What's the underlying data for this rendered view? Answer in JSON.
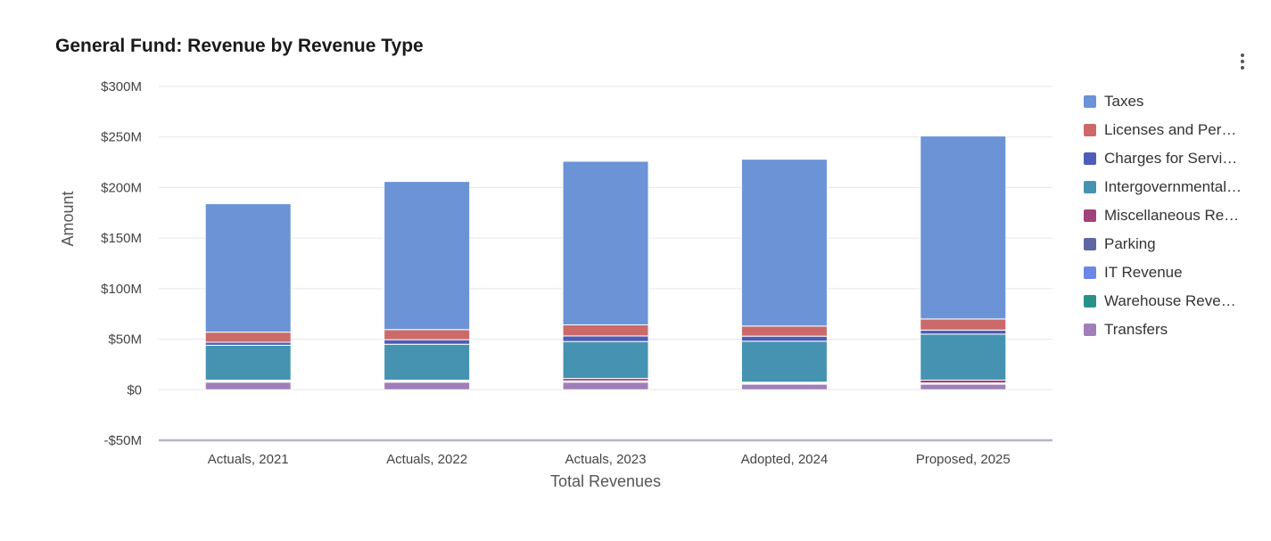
{
  "chart_data": {
    "type": "bar",
    "stacked": true,
    "title": "General Fund: Revenue by Revenue Type",
    "xlabel": "Total Revenues",
    "ylabel": "Amount",
    "ylim": [
      -50,
      300
    ],
    "y_ticks": [
      {
        "value": 300,
        "label": "$300M"
      },
      {
        "value": 250,
        "label": "$250M"
      },
      {
        "value": 200,
        "label": "$200M"
      },
      {
        "value": 150,
        "label": "$150M"
      },
      {
        "value": 100,
        "label": "$100M"
      },
      {
        "value": 50,
        "label": "$50M"
      },
      {
        "value": 0,
        "label": "$0"
      },
      {
        "value": -50,
        "label": "-$50M"
      }
    ],
    "grid": true,
    "legend_position": "right",
    "categories": [
      "Actuals, 2021",
      "Actuals, 2022",
      "Actuals, 2023",
      "Adopted, 2024",
      "Proposed, 2025"
    ],
    "series": [
      {
        "name": "Transfers",
        "legend_label": "Transfers",
        "color": "#a07fb9",
        "values": [
          7.5,
          7.5,
          7.5,
          5.5,
          5.5
        ]
      },
      {
        "name": "Warehouse Revenue",
        "legend_label": "Warehouse Reve…",
        "color": "#2a9189",
        "values": [
          0.5,
          0.5,
          0.5,
          0.5,
          0.5
        ]
      },
      {
        "name": "IT Revenue",
        "legend_label": "IT Revenue",
        "color": "#6a86e6",
        "values": [
          0.3,
          0.3,
          0.3,
          0.3,
          0.3
        ]
      },
      {
        "name": "Parking",
        "legend_label": "Parking",
        "color": "#5f67a3",
        "values": [
          0.4,
          0.4,
          0.4,
          0.4,
          0.4
        ]
      },
      {
        "name": "Miscellaneous Revenue",
        "legend_label": "Miscellaneous Re…",
        "color": "#a2427a",
        "values": [
          0.8,
          0.8,
          2.5,
          0.8,
          2.8
        ]
      },
      {
        "name": "Intergovernmental",
        "legend_label": "Intergovernmental…",
        "color": "#4593b1",
        "values": [
          34.5,
          35.5,
          36.5,
          40.5,
          45.5
        ]
      },
      {
        "name": "Charges for Services",
        "legend_label": "Charges for Servi…",
        "color": "#4e5db5",
        "values": [
          3.0,
          4.5,
          5.5,
          5.0,
          4.0
        ]
      },
      {
        "name": "Licenses and Permits",
        "legend_label": "Licenses and Per…",
        "color": "#cc6a6a",
        "values": [
          10.0,
          10.0,
          11.0,
          10.0,
          11.0
        ]
      },
      {
        "name": "Taxes",
        "legend_label": "Taxes",
        "color": "#6b93d6",
        "values": [
          127.0,
          146.5,
          161.8,
          165.0,
          181.0
        ]
      }
    ],
    "legend_order": [
      "Taxes",
      "Licenses and Permits",
      "Charges for Services",
      "Intergovernmental",
      "Miscellaneous Revenue",
      "Parking",
      "IT Revenue",
      "Warehouse Revenue",
      "Transfers"
    ]
  }
}
